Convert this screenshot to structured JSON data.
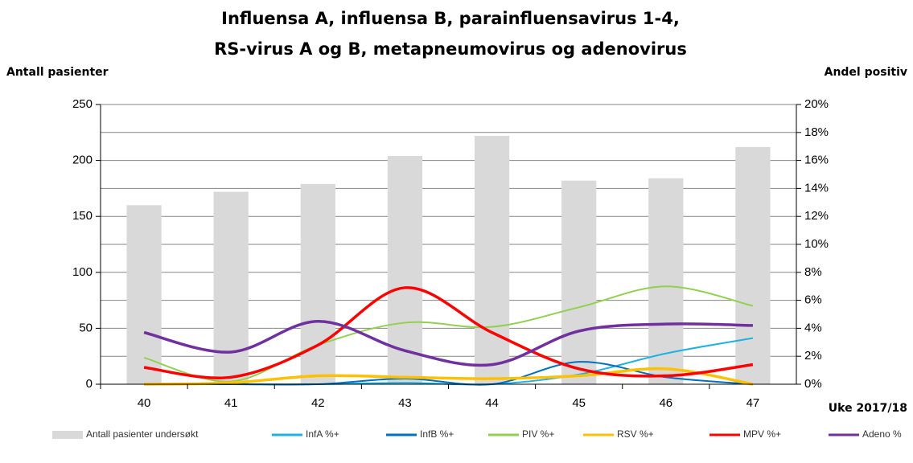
{
  "chart_data": {
    "type": "bar_line",
    "title": [
      "Influensa A, influensa B, parainfluensavirus 1-4,",
      "RS-virus A og B, metapneumovirus og adenovirus"
    ],
    "y_label": "Antall pasienter",
    "y2_label": "Andel positiv",
    "x_label": "Uke 2017/18",
    "categories": [
      "40",
      "41",
      "42",
      "43",
      "44",
      "45",
      "46",
      "47"
    ],
    "ylim": [
      0,
      250
    ],
    "yticks": [
      0,
      50,
      100,
      150,
      200,
      250
    ],
    "y2lim": [
      0,
      20
    ],
    "y2ticks": [
      {
        "value": 0,
        "label": "0%"
      },
      {
        "value": 2,
        "label": "2%"
      },
      {
        "value": 4,
        "label": "4%"
      },
      {
        "value": 6,
        "label": "6%"
      },
      {
        "value": 8,
        "label": "8%"
      },
      {
        "value": 10,
        "label": "10%"
      },
      {
        "value": 12,
        "label": "12%"
      },
      {
        "value": 14,
        "label": "14%"
      },
      {
        "value": 16,
        "label": "16%"
      },
      {
        "value": 18,
        "label": "18%"
      },
      {
        "value": 20,
        "label": "20%"
      }
    ],
    "grid": true,
    "series": [
      {
        "name": "Antall pasienter undersøkt",
        "type": "bar",
        "color": "#d9d9d9",
        "values": [
          160,
          172,
          179,
          204,
          222,
          182,
          184,
          212
        ]
      },
      {
        "name": "InfA %+",
        "type": "line",
        "axis": "y2",
        "color": "#1fb1e6",
        "values": [
          0,
          0,
          0,
          0.1,
          0,
          0.7,
          2.2,
          3.3
        ]
      },
      {
        "name": "InfB %+",
        "type": "line",
        "axis": "y2",
        "color": "#0070c0",
        "values": [
          0,
          0,
          0,
          0.4,
          0,
          1.6,
          0.5,
          0
        ]
      },
      {
        "name": "PIV %+",
        "type": "line",
        "axis": "y2",
        "color": "#92d050",
        "values": [
          1.9,
          0.2,
          2.8,
          4.4,
          4.1,
          5.5,
          7.0,
          5.6
        ]
      },
      {
        "name": "RSV %+",
        "type": "line",
        "axis": "y2",
        "color": "#ffc000",
        "values": [
          0,
          0.1,
          0.6,
          0.5,
          0.4,
          0.6,
          1.1,
          0
        ]
      },
      {
        "name": "MPV %+",
        "type": "line",
        "axis": "y2",
        "color": "#ff0000",
        "values": [
          1.2,
          0.5,
          2.8,
          6.9,
          3.7,
          1.1,
          0.6,
          1.4
        ]
      },
      {
        "name": "Adeno %",
        "type": "line",
        "axis": "y2",
        "color": "#7030a0",
        "values": [
          3.7,
          2.3,
          4.5,
          2.4,
          1.4,
          3.8,
          4.3,
          4.2
        ]
      }
    ]
  }
}
